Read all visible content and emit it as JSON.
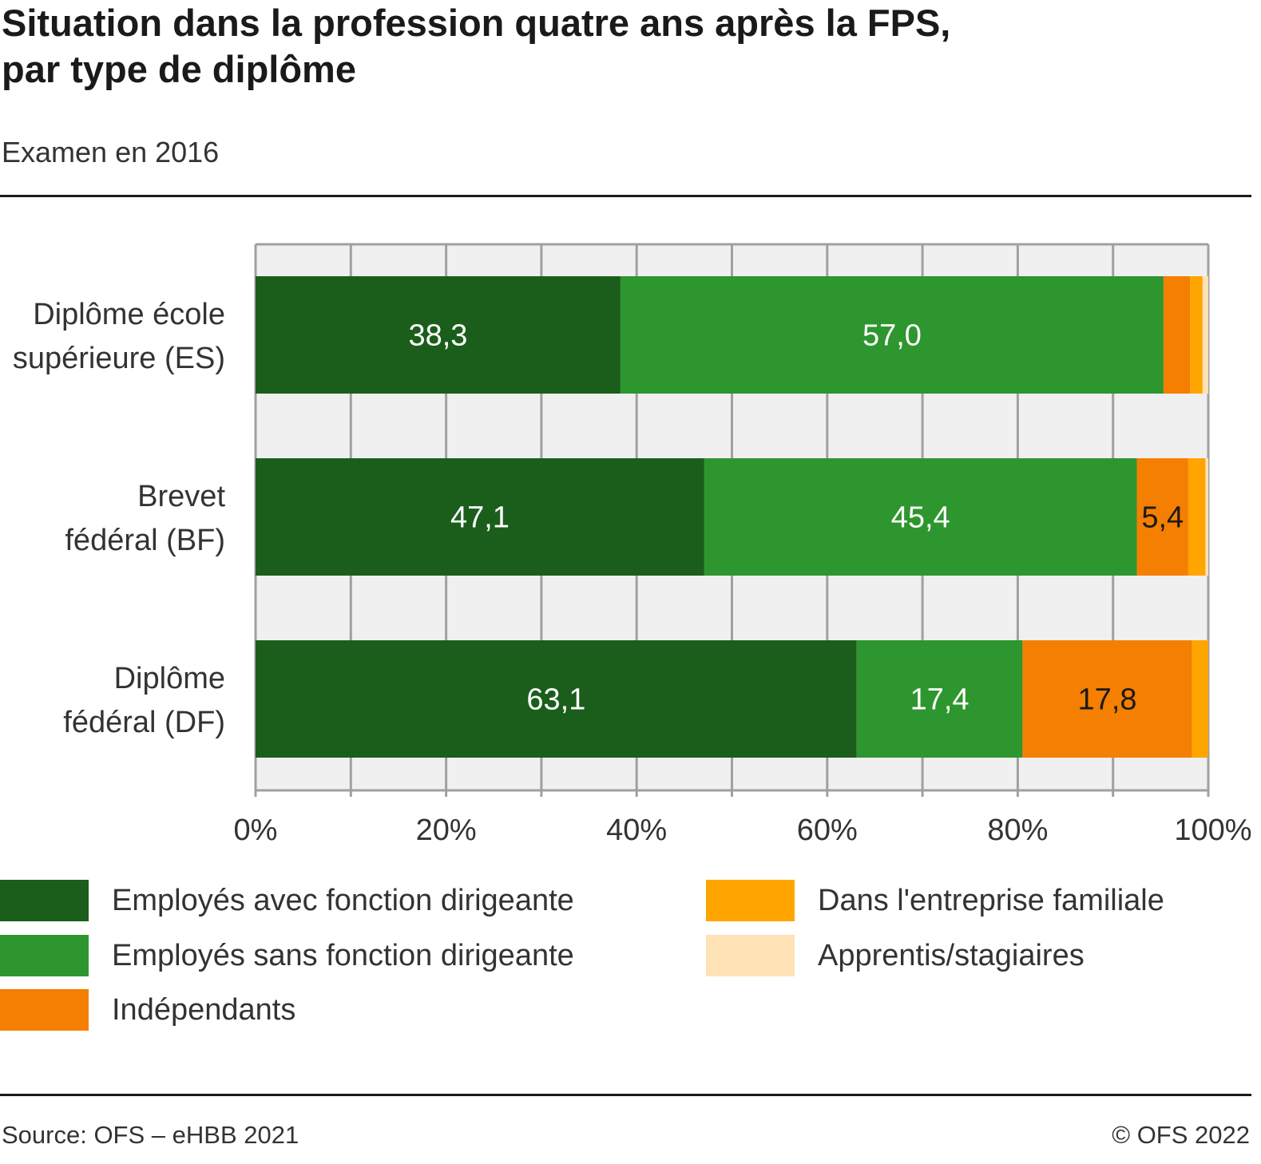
{
  "chart_data": {
    "type": "bar",
    "orientation": "horizontal",
    "stacked": true,
    "title": "Situation dans la profession quatre ans après la FPS, par type de diplôme",
    "title_lines": [
      "Situation dans la profession quatre ans après la FPS,",
      "par type de diplôme"
    ],
    "subtitle": "Examen en 2016",
    "categories": [
      {
        "lines": [
          "Diplôme école",
          "supérieure (ES)"
        ]
      },
      {
        "lines": [
          "Brevet",
          "fédéral (BF)"
        ]
      },
      {
        "lines": [
          "Diplôme",
          "fédéral (DF)"
        ]
      }
    ],
    "series": [
      {
        "name": "Employés avec fonction dirigeante",
        "color": "#1b5e1b",
        "values": [
          38.3,
          47.1,
          63.1
        ],
        "labels": [
          "38,3",
          "47,1",
          "63,1"
        ],
        "label_color": "#ffffff"
      },
      {
        "name": "Employés sans fonction dirigeante",
        "color": "#2e962e",
        "values": [
          57.0,
          45.4,
          17.4
        ],
        "labels": [
          "57,0",
          "45,4",
          "17,4"
        ],
        "label_color": "#ffffff"
      },
      {
        "name": "Indépendants",
        "color": "#f57f00",
        "values": [
          2.8,
          5.4,
          17.8
        ],
        "labels": [
          "",
          "5,4",
          "17,8"
        ],
        "label_color": "#1a1a1a"
      },
      {
        "name": "Dans l'entreprise familiale",
        "color": "#ffa500",
        "values": [
          1.3,
          1.8,
          1.7
        ],
        "labels": [
          "",
          "",
          ""
        ],
        "label_color": "#1a1a1a"
      },
      {
        "name": "Apprentis/stagiaires",
        "color": "#ffe2b5",
        "values": [
          0.6,
          0.3,
          0.0
        ],
        "labels": [
          "",
          "",
          ""
        ],
        "label_color": "#1a1a1a"
      }
    ],
    "xlim": [
      0,
      100
    ],
    "xticks": [
      0,
      20,
      40,
      60,
      80,
      100
    ],
    "xtick_labels": [
      "0%",
      "20%",
      "40%",
      "60%",
      "80%",
      "100%"
    ],
    "minor_grid_step": 10,
    "grid": true,
    "xlabel": "",
    "ylabel": "",
    "legend_position": "bottom"
  },
  "footer": {
    "source": "Source: OFS – eHBB 2021",
    "copyright": "© OFS 2022"
  }
}
